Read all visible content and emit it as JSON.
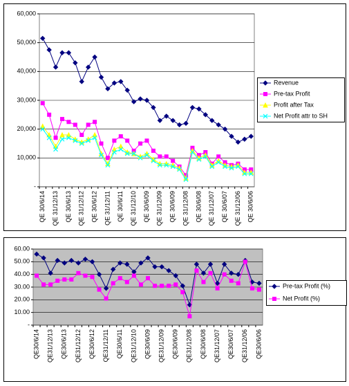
{
  "chart_data": [
    {
      "type": "line",
      "categories": [
        "QE 30/6/14",
        null,
        "QE 31/12/13",
        null,
        "QE 30/6/13",
        null,
        "QE 31/12/12",
        null,
        "QE 30/6/12",
        null,
        "QE 31/12/11",
        null,
        "QE 30/6/11",
        null,
        "QE 31/12/10",
        null,
        "QE 30/6/09",
        null,
        "QE 31/12/09",
        null,
        "QE 30/6/09",
        null,
        "QE 31/12/08",
        null,
        "QE 30/6/08",
        null,
        "QE 31/12/07",
        null,
        "QE 30/6/07",
        null,
        "QE 31/12/06",
        null,
        "QE 30/6/06"
      ],
      "series": [
        {
          "name": "Revenue",
          "color": "#000080",
          "marker": "diamond",
          "values": [
            51500,
            47500,
            41500,
            46500,
            46500,
            43000,
            36500,
            41500,
            45000,
            38000,
            34000,
            36000,
            36500,
            33500,
            29500,
            30500,
            30000,
            27500,
            23000,
            24500,
            23000,
            21500,
            22000,
            27500,
            27000,
            25000,
            23000,
            21500,
            20000,
            17500,
            15500,
            16500,
            17500
          ]
        },
        {
          "name": "Pre-tax Profit",
          "color": "#ff00ff",
          "marker": "square",
          "values": [
            29000,
            25000,
            17000,
            23500,
            22500,
            21500,
            18000,
            21500,
            22500,
            15000,
            10000,
            16000,
            17500,
            16000,
            12500,
            15000,
            16000,
            12500,
            10500,
            10500,
            9000,
            7000,
            4000,
            13500,
            11000,
            12000,
            8000,
            10500,
            8500,
            7500,
            8000,
            6000,
            6000
          ]
        },
        {
          "name": "Profit after Tax",
          "color": "#ffff00",
          "marker": "triangle",
          "values": [
            21000,
            18000,
            14000,
            18000,
            18000,
            16500,
            15500,
            16500,
            18000,
            11500,
            8000,
            13000,
            14000,
            12000,
            11500,
            10500,
            11500,
            9500,
            8000,
            8000,
            7500,
            6500,
            3000,
            12500,
            10000,
            11000,
            7500,
            9000,
            7500,
            7000,
            7500,
            5000,
            5000
          ]
        },
        {
          "name": "Net Profit attr to SH",
          "color": "#00ffff",
          "marker": "x",
          "values": [
            20000,
            17000,
            13000,
            16500,
            17000,
            16000,
            15000,
            16000,
            17000,
            11000,
            7500,
            12000,
            13000,
            11500,
            11500,
            10000,
            11000,
            9000,
            7500,
            7500,
            7000,
            6000,
            2500,
            12000,
            9500,
            10500,
            7000,
            8500,
            7000,
            6500,
            7000,
            4500,
            4500
          ]
        }
      ],
      "ylim": [
        0,
        60000
      ],
      "yticks": [
        {
          "value": 0,
          "label": "-"
        },
        {
          "value": 10000,
          "label": "10,000"
        },
        {
          "value": 20000,
          "label": "20,000"
        },
        {
          "value": 30000,
          "label": "30,000"
        },
        {
          "value": 40000,
          "label": "40,000"
        },
        {
          "value": 50000,
          "label": "50,000"
        },
        {
          "value": 60000,
          "label": "60,000"
        }
      ],
      "grid": true,
      "legend": "right",
      "plot_background": "#ffffff"
    },
    {
      "type": "line",
      "categories": [
        "QE30/6/14",
        null,
        "QE31/12/13",
        null,
        "QE30/6/13",
        null,
        "QE31/12/12",
        null,
        "QE30/6/12",
        null,
        "QE31/12/11",
        null,
        "QE30/6/11",
        null,
        "QE31/12/10",
        null,
        "QE30/6/09",
        null,
        "QE31/12/09",
        null,
        "QE30/6/09",
        null,
        "QE31/12/08",
        null,
        "QE30/6/08",
        null,
        "QE31/12/07",
        null,
        "QE30/6/07",
        null,
        "QE31/12/06",
        null,
        "QE30/6/06"
      ],
      "series": [
        {
          "name": "Pre-tax Profit (%)",
          "color": "#000080",
          "marker": "diamond",
          "values": [
            56,
            53,
            41,
            51,
            49,
            51,
            49,
            52,
            50,
            40,
            29,
            44,
            49,
            48,
            42,
            49,
            53,
            46,
            46,
            43,
            39,
            31,
            16,
            48,
            41,
            48,
            33,
            48,
            41,
            40,
            51,
            34,
            33
          ]
        },
        {
          "name": "Net Profit (%)",
          "color": "#ff00ff",
          "marker": "square",
          "values": [
            39,
            32,
            32,
            35,
            36,
            36,
            41,
            39,
            38,
            28,
            21,
            33,
            37,
            34,
            39,
            32,
            37,
            31,
            31,
            31,
            32,
            26,
            7,
            43,
            34,
            41,
            29,
            40,
            35,
            33,
            50,
            29,
            28
          ]
        }
      ],
      "ylim": [
        0,
        60
      ],
      "yticks": [
        {
          "value": 0,
          "label": "-"
        },
        {
          "value": 10,
          "label": "10.00"
        },
        {
          "value": 20,
          "label": "20.00"
        },
        {
          "value": 30,
          "label": "30.00"
        },
        {
          "value": 40,
          "label": "40.00"
        },
        {
          "value": 50,
          "label": "50.00"
        },
        {
          "value": 60,
          "label": "60.00"
        }
      ],
      "grid": true,
      "legend": "right",
      "plot_background": "#c0c0c0"
    }
  ]
}
